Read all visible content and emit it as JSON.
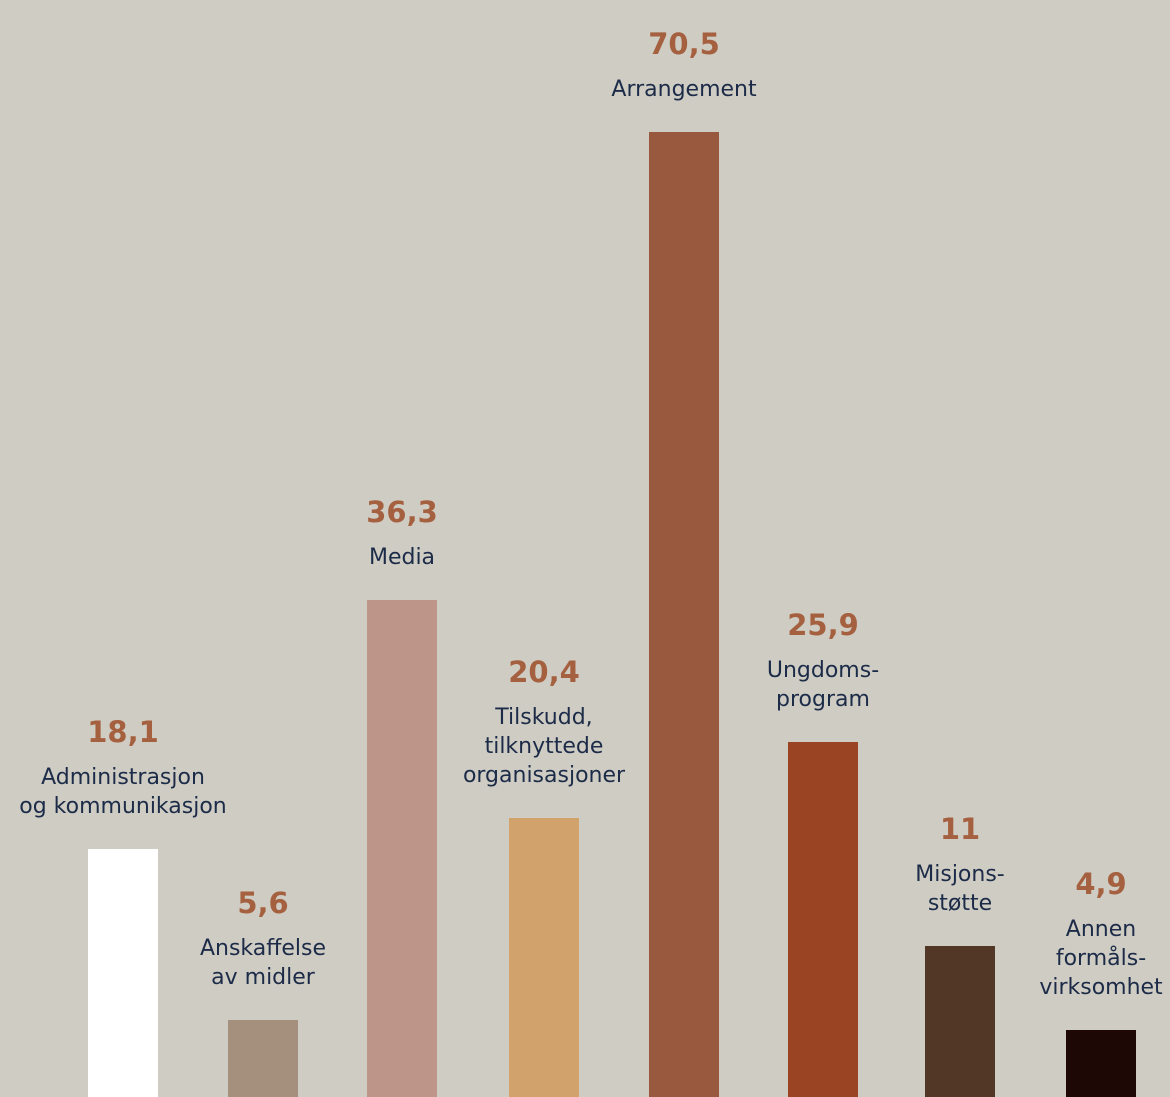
{
  "chart_data": {
    "type": "bar",
    "ylim": [
      0,
      70.5
    ],
    "categories": [
      [
        "Administrasjon",
        "og kommunikasjon"
      ],
      [
        "Anskaffelse",
        "av midler"
      ],
      [
        "Media"
      ],
      [
        "Tilskudd,",
        "tilknyttede",
        "organisasjoner"
      ],
      [
        "Arrangement"
      ],
      [
        "Ungdoms-",
        "program"
      ],
      [
        "Misjons-",
        "støtte"
      ],
      [
        "Annen",
        "formåls-",
        "virksomhet"
      ]
    ],
    "values": [
      18.1,
      5.6,
      36.3,
      20.4,
      70.5,
      25.9,
      11,
      4.9
    ],
    "value_labels": [
      "18,1",
      "5,6",
      "36,3",
      "20,4",
      "70,5",
      "25,9",
      "11",
      "4,9"
    ],
    "colors": [
      "#ffffff",
      "#a5907e",
      "#bd9589",
      "#d1a26c",
      "#98593e",
      "#9a4423",
      "#523727",
      "#1e0806"
    ]
  }
}
